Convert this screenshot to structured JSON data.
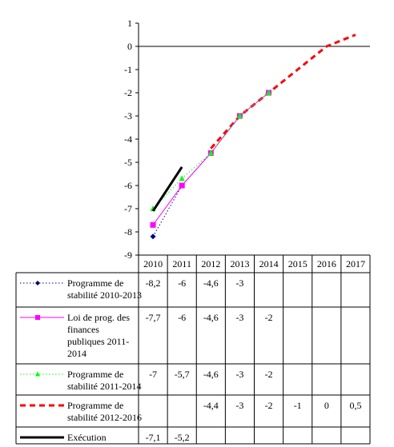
{
  "chart_data": {
    "type": "line",
    "title": "",
    "xlabel": "",
    "ylabel": "",
    "ylim": [
      -9,
      1
    ],
    "yticks": [
      1,
      0,
      -1,
      -2,
      -3,
      -4,
      -5,
      -6,
      -7,
      -8,
      -9
    ],
    "ytick_labels": [
      "1",
      "0",
      "-1",
      "-2",
      "-3",
      "-4",
      "-5",
      "-6",
      "-7",
      "-8",
      "-9"
    ],
    "categories": [
      "2010",
      "2011",
      "2012",
      "2013",
      "2014",
      "2015",
      "2016",
      "2017"
    ],
    "grid": false,
    "legend": "table-below",
    "series": [
      {
        "name": "Programme de stabilité 2010-2013",
        "legend_lines": [
          "Programme de",
          "stabilité 2010-2013"
        ],
        "color": "#000080",
        "line_style": "dotted",
        "marker": "diamond",
        "values": [
          -8.2,
          -6,
          -4.6,
          -3,
          null,
          null,
          null,
          null
        ],
        "labels": [
          "-8,2",
          "-6",
          "-4,6",
          "-3",
          "",
          "",
          "",
          ""
        ]
      },
      {
        "name": "Loi de prog. des finances publiques 2011-2014",
        "legend_lines": [
          "Loi de prog. des",
          "finances",
          "publiques 2011-",
          "2014"
        ],
        "color": "#ff00ff",
        "line_style": "solid",
        "marker": "square",
        "values": [
          -7.7,
          -6,
          -4.6,
          -3,
          -2,
          null,
          null,
          null
        ],
        "labels": [
          "-7,7",
          "-6",
          "-4,6",
          "-3",
          "-2",
          "",
          "",
          ""
        ]
      },
      {
        "name": "Programme de stabilité 2011-2014",
        "legend_lines": [
          "Programme de",
          "stabilité 2011-2014"
        ],
        "color": "#00ff00",
        "line_style": "dotted",
        "marker": "triangle",
        "values": [
          -7,
          -5.7,
          -4.6,
          -3,
          -2,
          null,
          null,
          null
        ],
        "labels": [
          "-7",
          "-5,7",
          "-4,6",
          "-3",
          "-2",
          "",
          "",
          ""
        ]
      },
      {
        "name": "Programme de stabilité 2012-2016",
        "legend_lines": [
          "Programme de",
          "stabilité 2012-2016"
        ],
        "color": "#ff0000",
        "line_style": "dashed",
        "marker": "none",
        "values": [
          null,
          null,
          -4.4,
          -3,
          -2,
          -1,
          0,
          0.5
        ],
        "labels": [
          "",
          "",
          "-4,4",
          "-3",
          "-2",
          "-1",
          "0",
          "0,5"
        ]
      },
      {
        "name": "Exécution",
        "legend_lines": [
          "Exécution"
        ],
        "color": "#000000",
        "line_style": "solid-thick",
        "marker": "none",
        "values": [
          -7.1,
          -5.2,
          null,
          null,
          null,
          null,
          null,
          null
        ],
        "labels": [
          "-7,1",
          "-5,2",
          "",
          "",
          "",
          "",
          "",
          ""
        ]
      }
    ]
  }
}
